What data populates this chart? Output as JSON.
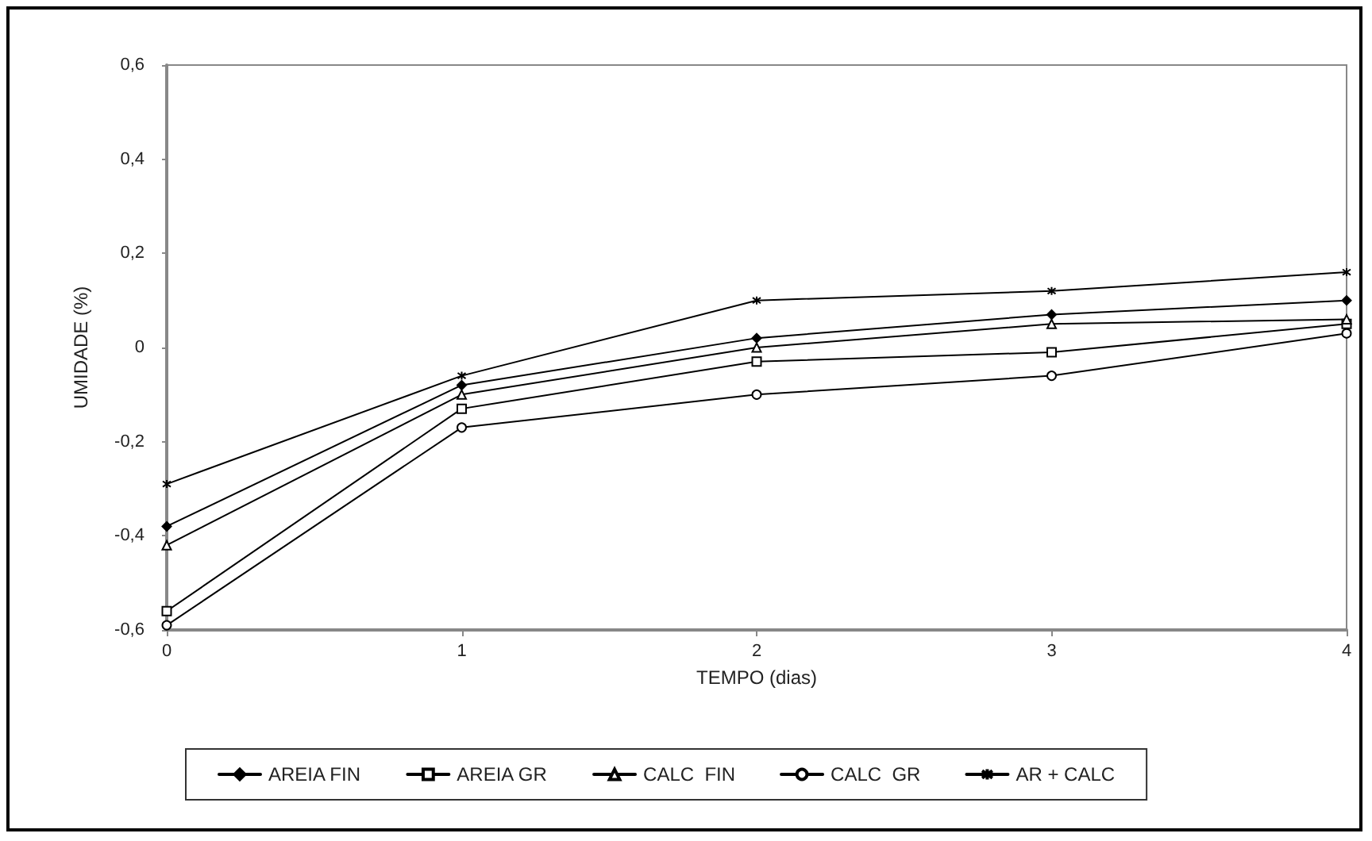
{
  "chart_data": {
    "type": "line",
    "xlabel": "TEMPO (dias)",
    "ylabel": "UMIDADE (%)",
    "x": [
      0,
      1,
      2,
      3,
      4
    ],
    "series": [
      {
        "name": "AREIA FIN",
        "color": "#000000",
        "marker": "diamond",
        "values": [
          -0.38,
          -0.08,
          0.02,
          0.07,
          0.1
        ]
      },
      {
        "name": "AREIA GR",
        "color": "#000000",
        "marker": "square",
        "values": [
          -0.56,
          -0.13,
          -0.03,
          -0.01,
          0.05
        ]
      },
      {
        "name": "CALC  FIN",
        "color": "#000000",
        "marker": "triangle",
        "values": [
          -0.42,
          -0.1,
          0.0,
          0.05,
          0.06
        ]
      },
      {
        "name": "CALC  GR",
        "color": "#000000",
        "marker": "circle",
        "values": [
          -0.59,
          -0.17,
          -0.1,
          -0.06,
          0.03
        ]
      },
      {
        "name": "AR + CALC",
        "color": "#000000",
        "marker": "cross",
        "values": [
          -0.29,
          -0.06,
          0.1,
          0.12,
          0.16
        ]
      }
    ],
    "xlim": [
      0,
      4
    ],
    "xticks": [
      0,
      1,
      2,
      3,
      4
    ],
    "ylim": [
      -0.6,
      0.6
    ],
    "yticks": [
      {
        "value": -0.6,
        "label": "-0,6"
      },
      {
        "value": -0.4,
        "label": "-0,4"
      },
      {
        "value": -0.2,
        "label": "-0,2"
      },
      0,
      {
        "value": 0.2,
        "label": "0,2"
      },
      {
        "value": 0.4,
        "label": "0,4"
      },
      {
        "value": 0.6,
        "label": "0,6"
      }
    ],
    "grid": false,
    "legend": "bottom",
    "line_style": "solid"
  }
}
